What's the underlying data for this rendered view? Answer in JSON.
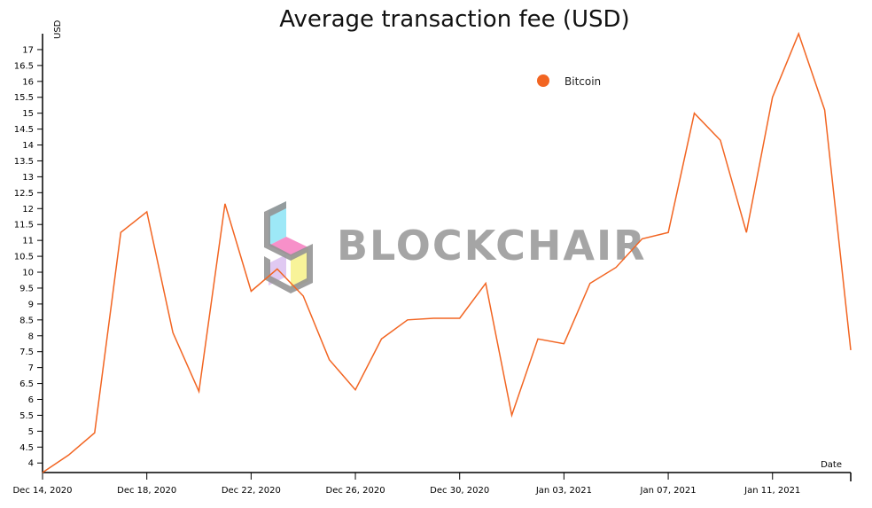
{
  "chart_data": {
    "type": "line",
    "title": "Average transaction fee (USD)",
    "ylabel": "USD",
    "xlabel": "Date",
    "ylim": [
      3.7,
      17.5
    ],
    "y_ticks": [
      4,
      4.5,
      5,
      5.5,
      6,
      6.5,
      7,
      7.5,
      8,
      8.5,
      9,
      9.5,
      10,
      10.5,
      11,
      11.5,
      12,
      12.5,
      13,
      13.5,
      14,
      14.5,
      15,
      15.5,
      16,
      16.5,
      17
    ],
    "x_ticks": [
      "Dec 14, 2020",
      "Dec 18, 2020",
      "Dec 22, 2020",
      "Dec 26, 2020",
      "Dec 30, 2020",
      "Jan 03, 2021",
      "Jan 07, 2021",
      "Jan 11, 2021"
    ],
    "grid": false,
    "legend_position": "top-right",
    "series": [
      {
        "name": "Bitcoin",
        "color": "#f26522",
        "x": [
          "2020-12-14",
          "2020-12-15",
          "2020-12-16",
          "2020-12-17",
          "2020-12-18",
          "2020-12-19",
          "2020-12-20",
          "2020-12-21",
          "2020-12-22",
          "2020-12-23",
          "2020-12-24",
          "2020-12-25",
          "2020-12-26",
          "2020-12-27",
          "2020-12-28",
          "2020-12-29",
          "2020-12-30",
          "2020-12-31",
          "2021-01-01",
          "2021-01-02",
          "2021-01-03",
          "2021-01-04",
          "2021-01-05",
          "2021-01-06",
          "2021-01-07",
          "2021-01-08",
          "2021-01-09",
          "2021-01-10",
          "2021-01-11",
          "2021-01-12",
          "2021-01-13",
          "2021-01-14"
        ],
        "values": [
          3.7,
          4.25,
          4.95,
          11.25,
          11.9,
          8.1,
          6.25,
          12.15,
          9.4,
          10.1,
          9.25,
          7.25,
          6.3,
          7.9,
          8.5,
          8.55,
          8.55,
          9.65,
          5.5,
          7.9,
          7.75,
          9.65,
          10.15,
          11.05,
          11.25,
          15.0,
          14.15,
          11.25,
          15.5,
          17.5,
          15.1,
          7.55
        ]
      }
    ]
  },
  "watermark": {
    "text": "BLOCKCHAIR",
    "icon": "blockchair-logo-icon"
  }
}
